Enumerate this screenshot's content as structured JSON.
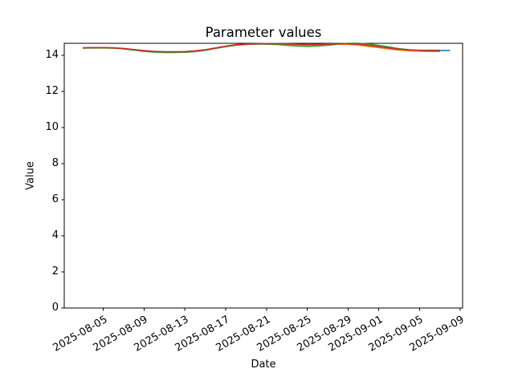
{
  "chart_data": {
    "type": "line",
    "title": "Parameter values",
    "xlabel": "Date",
    "ylabel": "Value",
    "grid": false,
    "ylim": [
      0,
      14.67
    ],
    "xlim": [
      "2025-08-01",
      "2025-09-09"
    ],
    "yticks": [
      0,
      2,
      4,
      6,
      8,
      10,
      12,
      14
    ],
    "xtick_labels": [
      "2025-08-05",
      "2025-08-09",
      "2025-08-13",
      "2025-08-17",
      "2025-08-21",
      "2025-08-25",
      "2025-08-29",
      "2025-09-01",
      "2025-09-05",
      "2025-09-09"
    ],
    "x": [
      "2025-08-03",
      "2025-08-04",
      "2025-08-05",
      "2025-08-06",
      "2025-08-07",
      "2025-08-08",
      "2025-08-09",
      "2025-08-10",
      "2025-08-11",
      "2025-08-12",
      "2025-08-13",
      "2025-08-14",
      "2025-08-15",
      "2025-08-16",
      "2025-08-17",
      "2025-08-18",
      "2025-08-19",
      "2025-08-20",
      "2025-08-21",
      "2025-08-22",
      "2025-08-23",
      "2025-08-24",
      "2025-08-25",
      "2025-08-26",
      "2025-08-27",
      "2025-08-28",
      "2025-08-29",
      "2025-08-30",
      "2025-08-31",
      "2025-09-01",
      "2025-09-02",
      "2025-09-03",
      "2025-09-04",
      "2025-09-05",
      "2025-09-06",
      "2025-09-07",
      "2025-09-08"
    ],
    "series": [
      {
        "name": "blue",
        "color": "#1f77b4",
        "values": [
          14.41,
          14.42,
          14.42,
          14.41,
          14.37,
          14.31,
          14.25,
          14.21,
          14.19,
          14.19,
          14.2,
          14.24,
          14.3,
          14.4,
          14.5,
          14.58,
          14.62,
          14.63,
          14.64,
          14.64,
          14.63,
          14.61,
          14.59,
          14.6,
          14.62,
          14.63,
          14.63,
          14.61,
          14.55,
          14.47,
          14.4,
          14.33,
          14.29,
          14.27,
          14.27,
          14.27,
          14.27
        ]
      },
      {
        "name": "orange",
        "color": "#ff7f0e",
        "values": [
          14.41,
          14.42,
          14.42,
          14.41,
          14.37,
          14.3,
          14.24,
          14.2,
          14.18,
          14.18,
          14.19,
          14.23,
          14.29,
          14.39,
          14.49,
          14.57,
          14.61,
          14.63,
          14.64,
          14.63,
          14.61,
          14.57,
          14.55,
          14.56,
          14.6,
          14.62,
          14.61,
          14.57,
          14.5,
          14.43,
          14.36,
          14.29,
          14.25,
          14.23,
          14.22,
          14.22,
          null
        ]
      },
      {
        "name": "green",
        "color": "#2ca02c",
        "values": [
          14.4,
          14.41,
          14.41,
          14.4,
          14.36,
          14.29,
          14.22,
          14.18,
          14.16,
          14.16,
          14.17,
          14.21,
          14.28,
          14.38,
          14.48,
          14.56,
          14.61,
          14.63,
          14.62,
          14.6,
          14.56,
          14.52,
          14.5,
          14.52,
          14.56,
          14.62,
          14.66,
          14.67,
          14.63,
          14.55,
          14.46,
          14.37,
          14.31,
          14.27,
          14.24,
          14.23,
          null
        ]
      },
      {
        "name": "red",
        "color": "#d62728",
        "values": [
          14.42,
          14.43,
          14.43,
          14.42,
          14.38,
          14.32,
          14.26,
          14.22,
          14.2,
          14.2,
          14.21,
          14.25,
          14.31,
          14.41,
          14.51,
          14.59,
          14.62,
          14.64,
          14.65,
          14.65,
          14.64,
          14.62,
          14.6,
          14.61,
          14.63,
          14.64,
          14.64,
          14.62,
          14.56,
          14.48,
          14.41,
          14.34,
          14.3,
          14.28,
          14.28,
          14.28,
          null
        ]
      }
    ]
  }
}
